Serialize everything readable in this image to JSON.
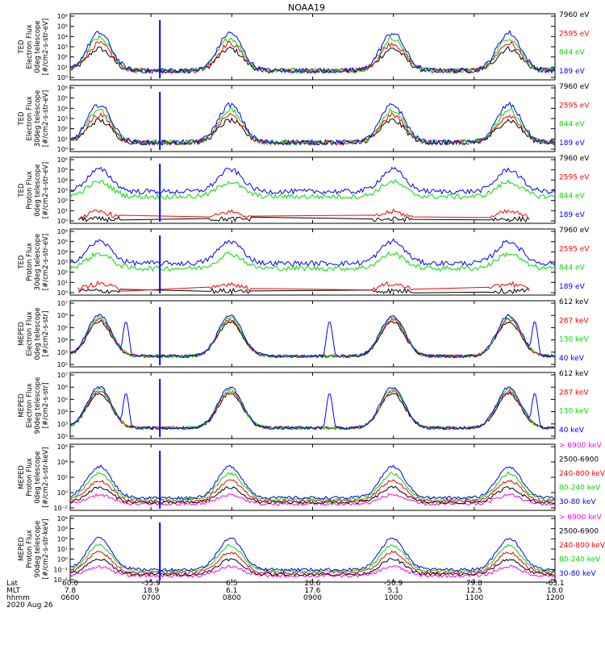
{
  "chart_data": {
    "type": "line",
    "title": "NOAA19",
    "date": "2020 Aug 26",
    "x_axis": {
      "row_labels": [
        "Lat",
        "MLT",
        "hhmm"
      ],
      "columns": [
        {
          "lat": "60.0",
          "mlt": "7.8",
          "hhmm": "0600"
        },
        {
          "lat": "-35.9",
          "mlt": "18.9",
          "hhmm": "0700"
        },
        {
          "lat": "6.5",
          "mlt": "6.1",
          "hhmm": "0800"
        },
        {
          "lat": "20.6",
          "mlt": "17.6",
          "hhmm": "0900"
        },
        {
          "lat": "-50.9",
          "mlt": "5.1",
          "hhmm": "1000"
        },
        {
          "lat": "79.8",
          "mlt": "12.5",
          "hhmm": "1100"
        },
        {
          "lat": "-63.1",
          "mlt": "18.0",
          "hhmm": "1200"
        }
      ]
    },
    "panels": [
      {
        "ylabel": [
          "TED",
          "Electron Flux",
          "0deg telescope",
          "[#/cm2-s-str-eV]"
        ],
        "ticks": [
          "10⁶",
          "10⁵",
          "10⁴",
          "10³",
          "10²",
          "10¹",
          "10⁰"
        ],
        "ylim_exp": [
          0,
          6
        ],
        "series": [
          {
            "name": "7960 eV",
            "color": "#000000"
          },
          {
            "name": "2595 eV",
            "color": "#ff0000"
          },
          {
            "name": "844 eV",
            "color": "#00dd00"
          },
          {
            "name": "189 eV",
            "color": "#0000ff"
          }
        ]
      },
      {
        "ylabel": [
          "TED",
          "Electron Flux",
          "30deg telescope",
          "[#/cm2-s-str-eV]"
        ],
        "ticks": [
          "10⁶",
          "10⁵",
          "10⁴",
          "10³",
          "10²",
          "10¹",
          "10⁰"
        ],
        "ylim_exp": [
          0,
          6
        ],
        "series": [
          {
            "name": "7960 eV",
            "color": "#000000"
          },
          {
            "name": "2595 eV",
            "color": "#ff0000"
          },
          {
            "name": "844 eV",
            "color": "#00dd00"
          },
          {
            "name": "189 eV",
            "color": "#0000ff"
          }
        ]
      },
      {
        "ylabel": [
          "TED",
          "Proton Flux",
          "0deg telescope",
          "[#/cm2-s-str-eV]"
        ],
        "ticks": [
          "10⁶",
          "10⁵",
          "10⁴",
          "10³",
          "10²",
          "10¹",
          "10⁰"
        ],
        "ylim_exp": [
          0,
          6
        ],
        "series": [
          {
            "name": "7960 eV",
            "color": "#000000"
          },
          {
            "name": "2595 eV",
            "color": "#ff0000"
          },
          {
            "name": "844 eV",
            "color": "#00dd00"
          },
          {
            "name": "189 eV",
            "color": "#0000ff"
          }
        ]
      },
      {
        "ylabel": [
          "TED",
          "Proton Flux",
          "30deg telescope",
          "[#/cm2-s-str-eV]"
        ],
        "ticks": [
          "10⁶",
          "10⁵",
          "10⁴",
          "10³",
          "10²",
          "10¹",
          "10⁰"
        ],
        "ylim_exp": [
          0,
          6
        ],
        "series": [
          {
            "name": "7960 eV",
            "color": "#000000"
          },
          {
            "name": "2595 eV",
            "color": "#ff0000"
          },
          {
            "name": "844 eV",
            "color": "#00dd00"
          },
          {
            "name": "189 eV",
            "color": "#0000ff"
          }
        ]
      },
      {
        "ylabel": [
          "MEPED",
          "Electron Flux",
          "0deg telescope",
          "[#/cm2-s-str]"
        ],
        "ticks": [
          "10⁷",
          "10⁶",
          "10⁵",
          "10⁴",
          "10³",
          "10²"
        ],
        "ylim_exp": [
          2,
          7
        ],
        "series": [
          {
            "name": "612 keV",
            "color": "#000000"
          },
          {
            "name": "287 keV",
            "color": "#ff0000"
          },
          {
            "name": "130 keV",
            "color": "#00dd00"
          },
          {
            "name": "40 keV",
            "color": "#0000ff"
          }
        ]
      },
      {
        "ylabel": [
          "MEPED",
          "Electron Flux",
          "90deg telescope",
          "[#/cm2-s-str]"
        ],
        "ticks": [
          "10⁷",
          "10⁶",
          "10⁵",
          "10⁴",
          "10³",
          "10²"
        ],
        "ylim_exp": [
          2,
          7
        ],
        "series": [
          {
            "name": "612 keV",
            "color": "#000000"
          },
          {
            "name": "287 keV",
            "color": "#ff0000"
          },
          {
            "name": "130 keV",
            "color": "#00dd00"
          },
          {
            "name": "40 keV",
            "color": "#0000ff"
          }
        ]
      },
      {
        "ylabel": [
          "MEPED",
          "Proton Flux",
          "0deg telescope",
          "[#/cm2-s-str-keV]"
        ],
        "ticks": [
          "10⁶",
          "10⁴",
          "10²",
          "10⁰",
          "10⁻²"
        ],
        "ylim_exp": [
          -2,
          6
        ],
        "series": [
          {
            "name": "> 6900 keV",
            "color": "#ff00ff"
          },
          {
            "name": "2500-6900",
            "color": "#000000"
          },
          {
            "name": "240-800 keV",
            "color": "#ff0000"
          },
          {
            "name": "80-240 keV",
            "color": "#00dd00"
          },
          {
            "name": "30-80 keV",
            "color": "#0000ff"
          }
        ]
      },
      {
        "ylabel": [
          "MEPED",
          "Proton Flux",
          "90deg telescope",
          "[#/cm2-s-str-keV]"
        ],
        "ticks": [
          "10⁴",
          "10³",
          "10²",
          "10¹",
          "10⁰",
          "10⁻¹",
          "10⁻²"
        ],
        "ylim_exp": [
          -2,
          4
        ],
        "series": [
          {
            "name": "> 6900 keV",
            "color": "#ff00ff"
          },
          {
            "name": "2500-6900",
            "color": "#000000"
          },
          {
            "name": "240-800 keV",
            "color": "#ff0000"
          },
          {
            "name": "80-240 keV",
            "color": "#00dd00"
          },
          {
            "name": "30-80 keV",
            "color": "#0000ff"
          }
        ]
      }
    ]
  }
}
